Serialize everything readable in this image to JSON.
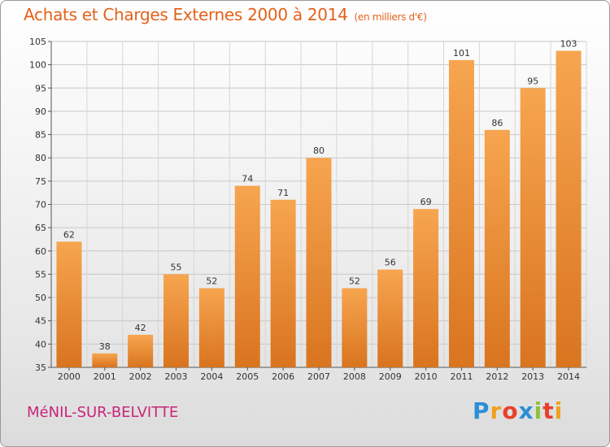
{
  "chart_data": {
    "type": "bar",
    "title": "Achats et Charges Externes 2000 à 2014",
    "subtitle": "(en milliers d'€)",
    "categories": [
      "2000",
      "2001",
      "2002",
      "2003",
      "2004",
      "2005",
      "2006",
      "2007",
      "2008",
      "2009",
      "2010",
      "2011",
      "2012",
      "2013",
      "2014"
    ],
    "values": [
      62,
      38,
      42,
      55,
      52,
      74,
      71,
      80,
      52,
      56,
      69,
      101,
      86,
      95,
      103
    ],
    "ylim": [
      35,
      105
    ],
    "yticks": [
      35,
      40,
      45,
      50,
      55,
      60,
      65,
      70,
      75,
      80,
      85,
      90,
      95,
      100,
      105
    ],
    "grid": true,
    "bar_color": "#f08c30"
  },
  "commune": "MéNIL-SUR-BELVITTE",
  "logo": {
    "letters": [
      "P",
      "r",
      "o",
      "x",
      "i",
      "t",
      "i"
    ],
    "colors": [
      "#2b8fd6",
      "#f0a020",
      "#e8402a",
      "#2b8fd6",
      "#8fc13e",
      "#e8402a",
      "#f0a020"
    ]
  }
}
